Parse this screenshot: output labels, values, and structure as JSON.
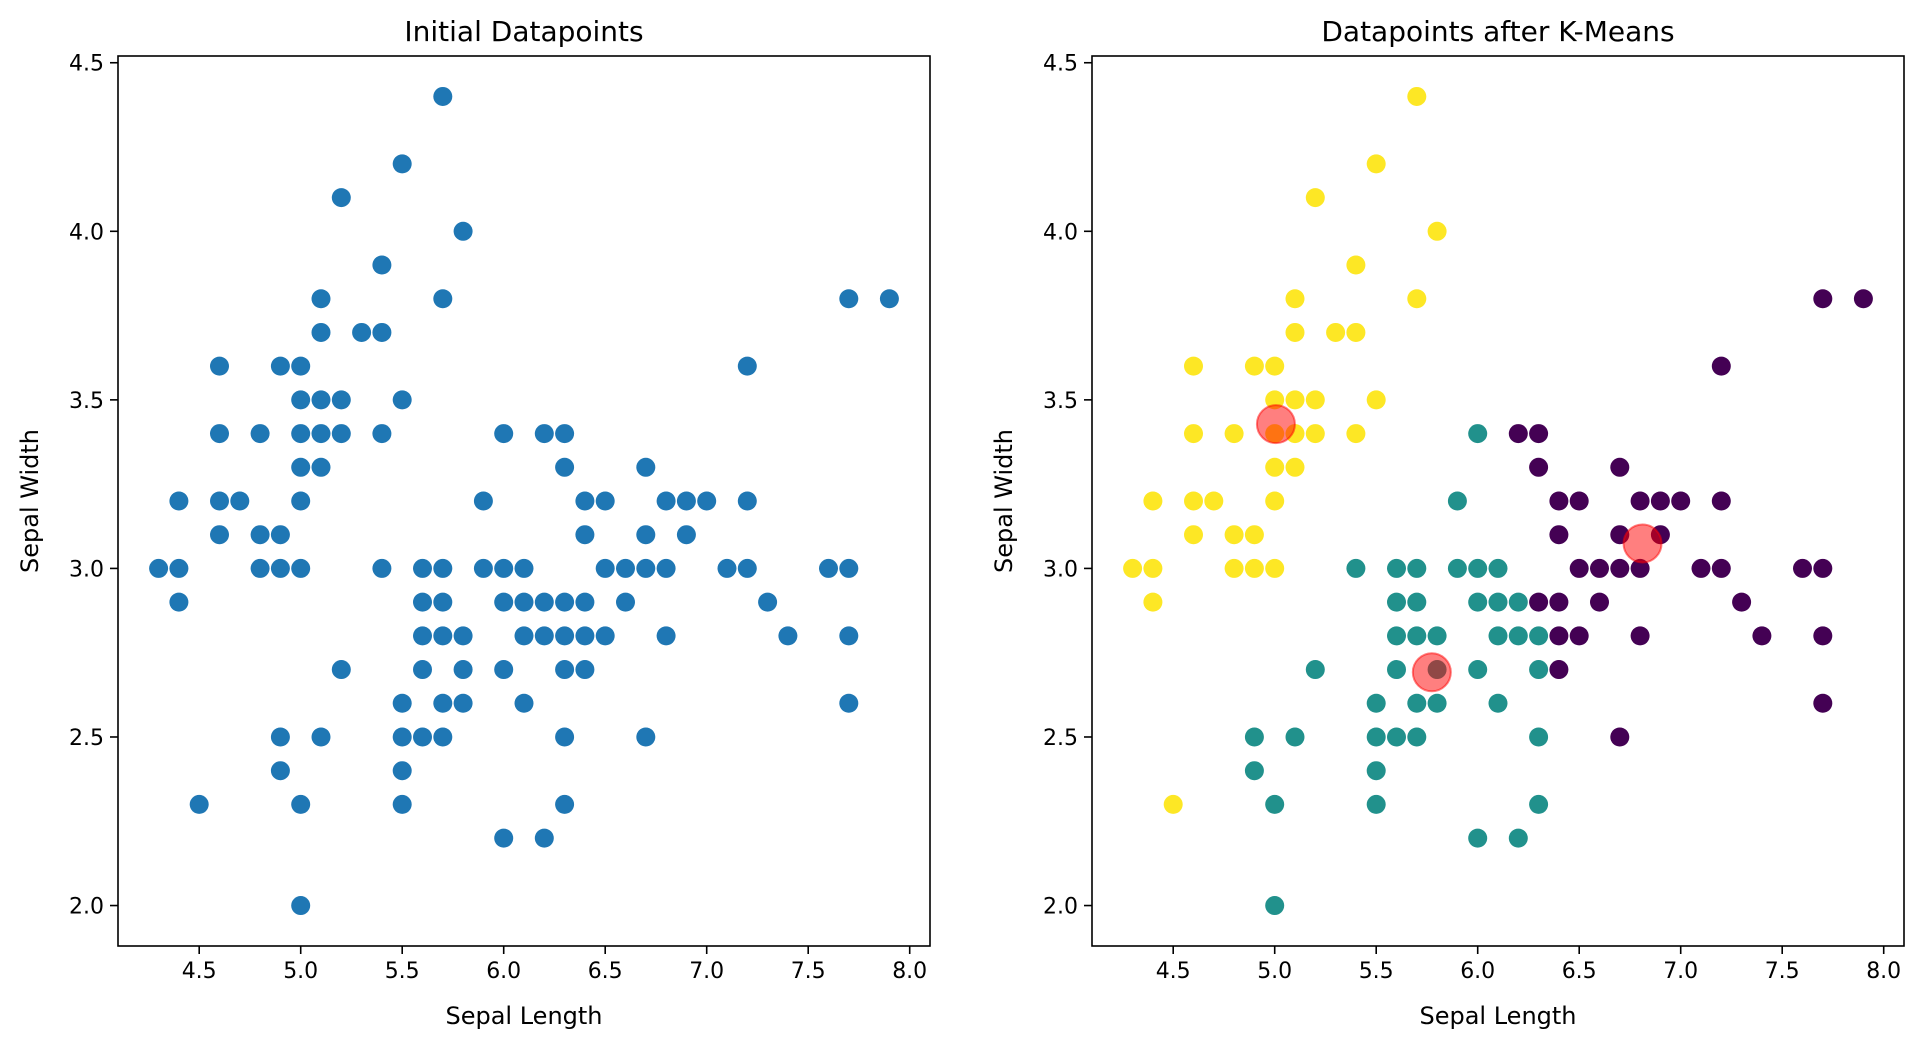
{
  "colors": {
    "initial": "#1f77b4",
    "cluster_0": "#440154",
    "cluster_1": "#21918c",
    "cluster_2": "#fde725",
    "centroid": "#ff0000"
  },
  "chart_data": [
    {
      "type": "scatter",
      "title": "Initial Datapoints",
      "xlabel": "Sepal Length",
      "ylabel": "Sepal Width",
      "xlim": [
        4.1,
        8.1
      ],
      "ylim": [
        1.88,
        4.52
      ],
      "xticks": [
        "4.5",
        "5.0",
        "5.5",
        "6.0",
        "6.5",
        "7.0",
        "7.5",
        "8.0"
      ],
      "yticks": [
        "2.0",
        "2.5",
        "3.0",
        "3.5",
        "4.0",
        "4.5"
      ],
      "series": [
        {
          "color": "#1f77b4",
          "points": [
            [
              5.7,
              4.4
            ],
            [
              5.5,
              4.2
            ],
            [
              5.2,
              4.1
            ],
            [
              5.8,
              4.0
            ],
            [
              5.4,
              3.9
            ],
            [
              5.1,
              3.8
            ],
            [
              5.7,
              3.8
            ],
            [
              7.7,
              3.8
            ],
            [
              7.9,
              3.8
            ],
            [
              5.1,
              3.7
            ],
            [
              5.3,
              3.7
            ],
            [
              5.4,
              3.7
            ],
            [
              4.6,
              3.6
            ],
            [
              4.9,
              3.6
            ],
            [
              5.0,
              3.6
            ],
            [
              7.2,
              3.6
            ],
            [
              5.0,
              3.5
            ],
            [
              5.1,
              3.5
            ],
            [
              5.2,
              3.5
            ],
            [
              5.5,
              3.5
            ],
            [
              4.6,
              3.4
            ],
            [
              4.8,
              3.4
            ],
            [
              5.0,
              3.4
            ],
            [
              5.1,
              3.4
            ],
            [
              5.2,
              3.4
            ],
            [
              5.4,
              3.4
            ],
            [
              6.0,
              3.4
            ],
            [
              6.2,
              3.4
            ],
            [
              6.3,
              3.4
            ],
            [
              5.0,
              3.3
            ],
            [
              5.1,
              3.3
            ],
            [
              6.3,
              3.3
            ],
            [
              6.7,
              3.3
            ],
            [
              4.4,
              3.2
            ],
            [
              4.6,
              3.2
            ],
            [
              4.7,
              3.2
            ],
            [
              5.0,
              3.2
            ],
            [
              5.9,
              3.2
            ],
            [
              6.4,
              3.2
            ],
            [
              6.5,
              3.2
            ],
            [
              6.8,
              3.2
            ],
            [
              6.9,
              3.2
            ],
            [
              7.0,
              3.2
            ],
            [
              7.2,
              3.2
            ],
            [
              4.6,
              3.1
            ],
            [
              4.8,
              3.1
            ],
            [
              4.9,
              3.1
            ],
            [
              6.4,
              3.1
            ],
            [
              6.7,
              3.1
            ],
            [
              6.9,
              3.1
            ],
            [
              4.3,
              3.0
            ],
            [
              4.4,
              3.0
            ],
            [
              4.8,
              3.0
            ],
            [
              4.9,
              3.0
            ],
            [
              5.0,
              3.0
            ],
            [
              5.4,
              3.0
            ],
            [
              5.6,
              3.0
            ],
            [
              5.7,
              3.0
            ],
            [
              5.9,
              3.0
            ],
            [
              6.0,
              3.0
            ],
            [
              6.1,
              3.0
            ],
            [
              6.5,
              3.0
            ],
            [
              6.6,
              3.0
            ],
            [
              6.7,
              3.0
            ],
            [
              6.8,
              3.0
            ],
            [
              7.1,
              3.0
            ],
            [
              7.2,
              3.0
            ],
            [
              7.6,
              3.0
            ],
            [
              7.7,
              3.0
            ],
            [
              4.4,
              2.9
            ],
            [
              5.6,
              2.9
            ],
            [
              5.7,
              2.9
            ],
            [
              6.0,
              2.9
            ],
            [
              6.1,
              2.9
            ],
            [
              6.2,
              2.9
            ],
            [
              6.3,
              2.9
            ],
            [
              6.4,
              2.9
            ],
            [
              6.6,
              2.9
            ],
            [
              7.3,
              2.9
            ],
            [
              5.6,
              2.8
            ],
            [
              5.7,
              2.8
            ],
            [
              5.8,
              2.8
            ],
            [
              6.1,
              2.8
            ],
            [
              6.2,
              2.8
            ],
            [
              6.3,
              2.8
            ],
            [
              6.4,
              2.8
            ],
            [
              6.5,
              2.8
            ],
            [
              6.8,
              2.8
            ],
            [
              7.4,
              2.8
            ],
            [
              7.7,
              2.8
            ],
            [
              5.2,
              2.7
            ],
            [
              5.6,
              2.7
            ],
            [
              5.8,
              2.7
            ],
            [
              6.0,
              2.7
            ],
            [
              6.3,
              2.7
            ],
            [
              6.4,
              2.7
            ],
            [
              5.5,
              2.6
            ],
            [
              5.7,
              2.6
            ],
            [
              5.8,
              2.6
            ],
            [
              6.1,
              2.6
            ],
            [
              7.7,
              2.6
            ],
            [
              4.9,
              2.5
            ],
            [
              5.1,
              2.5
            ],
            [
              5.5,
              2.5
            ],
            [
              5.6,
              2.5
            ],
            [
              5.7,
              2.5
            ],
            [
              6.3,
              2.5
            ],
            [
              6.7,
              2.5
            ],
            [
              4.9,
              2.4
            ],
            [
              5.5,
              2.4
            ],
            [
              4.5,
              2.3
            ],
            [
              5.0,
              2.3
            ],
            [
              5.5,
              2.3
            ],
            [
              6.3,
              2.3
            ],
            [
              6.0,
              2.2
            ],
            [
              6.2,
              2.2
            ],
            [
              5.0,
              2.0
            ]
          ]
        }
      ]
    },
    {
      "type": "scatter",
      "title": "Datapoints after K-Means",
      "xlabel": "Sepal Length",
      "ylabel": "Sepal Width",
      "xlim": [
        4.1,
        8.1
      ],
      "ylim": [
        1.88,
        4.52
      ],
      "xticks": [
        "4.5",
        "5.0",
        "5.5",
        "6.0",
        "6.5",
        "7.0",
        "7.5",
        "8.0"
      ],
      "yticks": [
        "2.0",
        "2.5",
        "3.0",
        "3.5",
        "4.0",
        "4.5"
      ],
      "series": [
        {
          "color": "#440154",
          "points": [
            [
              7.7,
              3.8
            ],
            [
              7.9,
              3.8
            ],
            [
              7.2,
              3.6
            ],
            [
              6.2,
              3.4
            ],
            [
              6.3,
              3.4
            ],
            [
              6.3,
              3.3
            ],
            [
              6.7,
              3.3
            ],
            [
              6.4,
              3.2
            ],
            [
              6.5,
              3.2
            ],
            [
              6.8,
              3.2
            ],
            [
              6.9,
              3.2
            ],
            [
              7.0,
              3.2
            ],
            [
              7.2,
              3.2
            ],
            [
              6.4,
              3.1
            ],
            [
              6.7,
              3.1
            ],
            [
              6.9,
              3.1
            ],
            [
              6.5,
              3.0
            ],
            [
              6.6,
              3.0
            ],
            [
              6.7,
              3.0
            ],
            [
              6.8,
              3.0
            ],
            [
              7.1,
              3.0
            ],
            [
              7.2,
              3.0
            ],
            [
              7.6,
              3.0
            ],
            [
              7.7,
              3.0
            ],
            [
              6.3,
              2.9
            ],
            [
              6.4,
              2.9
            ],
            [
              6.6,
              2.9
            ],
            [
              7.3,
              2.9
            ],
            [
              6.4,
              2.8
            ],
            [
              6.5,
              2.8
            ],
            [
              6.8,
              2.8
            ],
            [
              7.4,
              2.8
            ],
            [
              7.7,
              2.8
            ],
            [
              6.4,
              2.7
            ],
            [
              7.7,
              2.6
            ],
            [
              6.7,
              2.5
            ]
          ]
        },
        {
          "color": "#21918c",
          "points": [
            [
              6.0,
              3.4
            ],
            [
              5.9,
              3.2
            ],
            [
              5.4,
              3.0
            ],
            [
              5.6,
              3.0
            ],
            [
              5.7,
              3.0
            ],
            [
              5.9,
              3.0
            ],
            [
              6.0,
              3.0
            ],
            [
              6.1,
              3.0
            ],
            [
              5.6,
              2.9
            ],
            [
              5.7,
              2.9
            ],
            [
              6.0,
              2.9
            ],
            [
              6.1,
              2.9
            ],
            [
              6.2,
              2.9
            ],
            [
              5.6,
              2.8
            ],
            [
              5.7,
              2.8
            ],
            [
              5.8,
              2.8
            ],
            [
              6.1,
              2.8
            ],
            [
              6.2,
              2.8
            ],
            [
              6.3,
              2.8
            ],
            [
              5.2,
              2.7
            ],
            [
              5.6,
              2.7
            ],
            [
              5.8,
              2.7
            ],
            [
              6.0,
              2.7
            ],
            [
              6.3,
              2.7
            ],
            [
              5.5,
              2.6
            ],
            [
              5.7,
              2.6
            ],
            [
              5.8,
              2.6
            ],
            [
              6.1,
              2.6
            ],
            [
              4.9,
              2.5
            ],
            [
              5.1,
              2.5
            ],
            [
              5.5,
              2.5
            ],
            [
              5.6,
              2.5
            ],
            [
              5.7,
              2.5
            ],
            [
              6.3,
              2.5
            ],
            [
              4.9,
              2.4
            ],
            [
              5.5,
              2.4
            ],
            [
              5.0,
              2.3
            ],
            [
              5.5,
              2.3
            ],
            [
              6.3,
              2.3
            ],
            [
              6.0,
              2.2
            ],
            [
              6.2,
              2.2
            ],
            [
              5.0,
              2.0
            ]
          ]
        },
        {
          "color": "#fde725",
          "points": [
            [
              5.7,
              4.4
            ],
            [
              5.5,
              4.2
            ],
            [
              5.2,
              4.1
            ],
            [
              5.8,
              4.0
            ],
            [
              5.4,
              3.9
            ],
            [
              5.1,
              3.8
            ],
            [
              5.7,
              3.8
            ],
            [
              5.1,
              3.7
            ],
            [
              5.3,
              3.7
            ],
            [
              5.4,
              3.7
            ],
            [
              4.6,
              3.6
            ],
            [
              4.9,
              3.6
            ],
            [
              5.0,
              3.6
            ],
            [
              5.0,
              3.5
            ],
            [
              5.1,
              3.5
            ],
            [
              5.2,
              3.5
            ],
            [
              5.5,
              3.5
            ],
            [
              4.6,
              3.4
            ],
            [
              4.8,
              3.4
            ],
            [
              5.0,
              3.4
            ],
            [
              5.1,
              3.4
            ],
            [
              5.2,
              3.4
            ],
            [
              5.4,
              3.4
            ],
            [
              5.0,
              3.3
            ],
            [
              5.1,
              3.3
            ],
            [
              4.4,
              3.2
            ],
            [
              4.6,
              3.2
            ],
            [
              4.7,
              3.2
            ],
            [
              5.0,
              3.2
            ],
            [
              4.6,
              3.1
            ],
            [
              4.8,
              3.1
            ],
            [
              4.9,
              3.1
            ],
            [
              4.3,
              3.0
            ],
            [
              4.4,
              3.0
            ],
            [
              4.8,
              3.0
            ],
            [
              4.9,
              3.0
            ],
            [
              5.0,
              3.0
            ],
            [
              4.4,
              2.9
            ],
            [
              4.5,
              2.3
            ]
          ]
        }
      ],
      "centroids": {
        "color": "#ff0000",
        "opacity": 0.5,
        "points": [
          [
            5.006,
            3.428
          ],
          [
            6.812,
            3.074
          ],
          [
            5.774,
            2.692
          ]
        ]
      }
    }
  ]
}
